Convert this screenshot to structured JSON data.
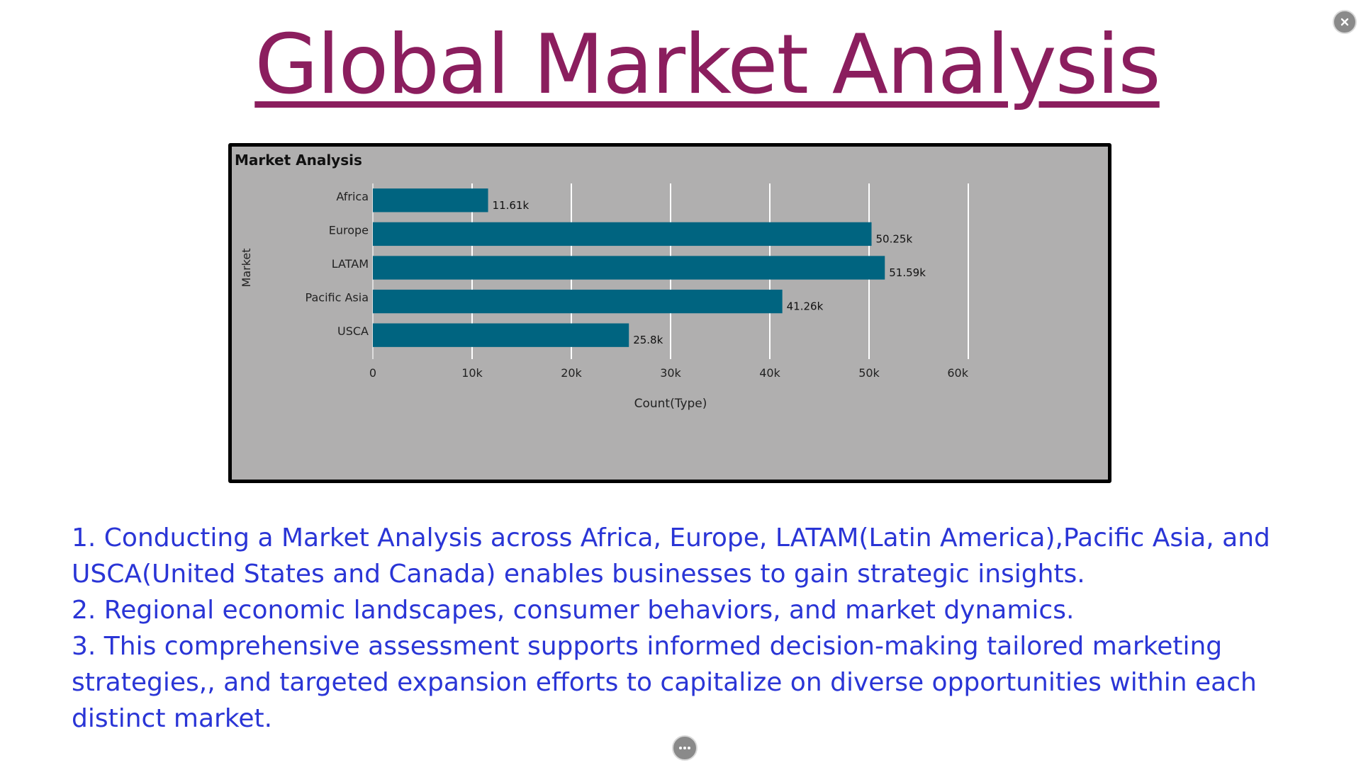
{
  "page": {
    "title": "Global Market Analysis"
  },
  "controls": {
    "close_icon": "close-icon",
    "more_icon": "ellipsis-icon"
  },
  "colors": {
    "title": "#8b1e5e",
    "bar": "#006480",
    "chart_background": "#b0afaf",
    "insight_text": "#2a35d6",
    "gridline": "#ffffff"
  },
  "chart_data": {
    "type": "bar",
    "orientation": "horizontal",
    "title": "Market Analysis",
    "xlabel": "Count(Type)",
    "ylabel": "Market",
    "categories": [
      "Africa",
      "Europe",
      "LATAM",
      "Pacific Asia",
      "USCA"
    ],
    "values": [
      11610,
      50250,
      51590,
      41260,
      25800
    ],
    "data_labels": [
      "11.61k",
      "50.25k",
      "51.59k",
      "41.26k",
      "25.8k"
    ],
    "xlim": [
      0,
      60000
    ],
    "x_ticks": [
      0,
      10000,
      20000,
      30000,
      40000,
      50000,
      60000
    ],
    "x_tick_labels": [
      "0",
      "10k",
      "20k",
      "30k",
      "40k",
      "50k",
      "60k"
    ],
    "grid": true,
    "legend": "none"
  },
  "insights": [
    "1. Conducting a Market Analysis across Africa, Europe, LATAM(Latin America),Pacific Asia, and USCA(United States and Canada) enables businesses to gain strategic insights.",
    "2. Regional economic landscapes, consumer behaviors, and market dynamics.",
    "3. This comprehensive assessment supports informed decision-making tailored marketing strategies,, and targeted expansion efforts to capitalize on diverse opportunities within each distinct market."
  ]
}
